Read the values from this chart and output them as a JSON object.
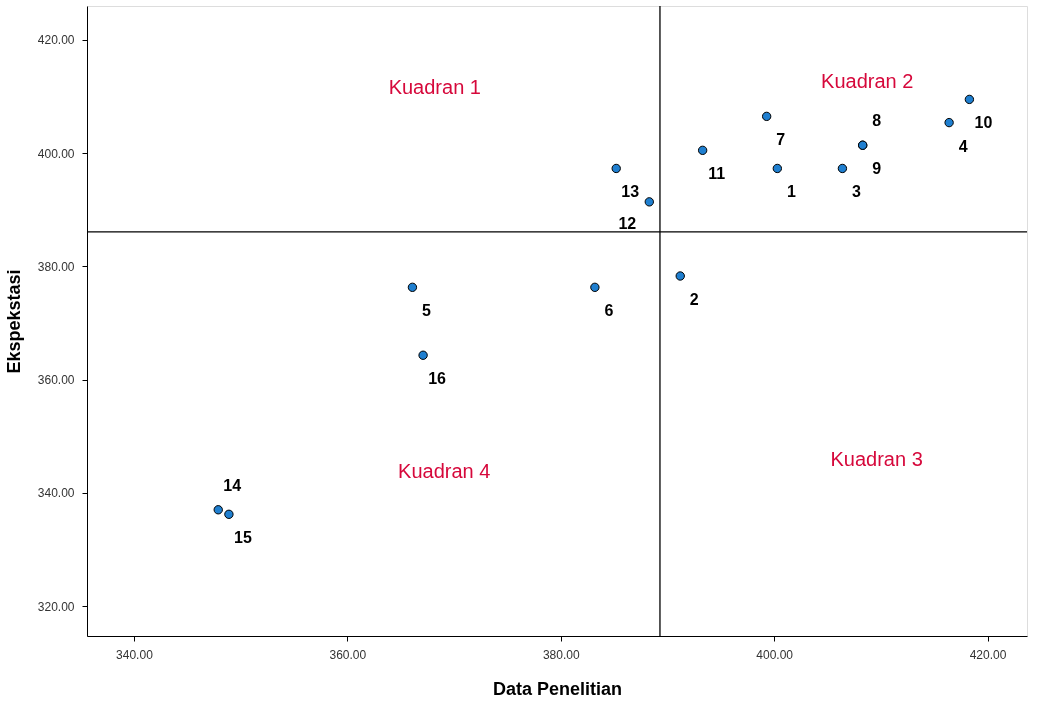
{
  "chart_data": {
    "type": "scatter",
    "xlabel": "Data Penelitian",
    "ylabel": "Ekspekstasi",
    "x": [
      400.3,
      391.2,
      406.4,
      416.4,
      366.1,
      383.2,
      399.3,
      408.3,
      408.3,
      418.3,
      393.3,
      388.3,
      385.2,
      347.9,
      348.9,
      367.1
    ],
    "series": [
      {
        "color": "#1f7fd0",
        "values": [
          397.3,
          378.3,
          397.3,
          405.4,
          376.3,
          376.3,
          406.5,
          401.4,
          401.4,
          409.5,
          400.5,
          391.4,
          397.3,
          337.0,
          336.2,
          364.3
        ]
      }
    ],
    "value_labels": [
      "1",
      "2",
      "3",
      "4",
      "5",
      "6",
      "7",
      "8",
      "9",
      "10",
      "11",
      "12",
      "13",
      "14",
      "15",
      "16"
    ],
    "xlim": [
      335.6,
      423.7
    ],
    "ylim": [
      314.7,
      426.0
    ],
    "xticks": [
      {
        "value": 340,
        "label": "340.00"
      },
      {
        "value": 360,
        "label": "360.00"
      },
      {
        "value": 380,
        "label": "380.00"
      },
      {
        "value": 400,
        "label": "400.00"
      },
      {
        "value": 420,
        "label": "420.00"
      }
    ],
    "yticks": [
      {
        "value": 320,
        "label": "320.00"
      },
      {
        "value": 340,
        "label": "340.00"
      },
      {
        "value": 360,
        "label": "360.00"
      },
      {
        "value": 380,
        "label": "380.00"
      },
      {
        "value": 400,
        "label": "400.00"
      },
      {
        "value": 420,
        "label": "420.00"
      }
    ],
    "ref_lines": [
      {
        "axis": "x",
        "value": 389.3,
        "color": "#000000"
      },
      {
        "axis": "y",
        "value": 386.1,
        "color": "#000000"
      }
    ],
    "annotations": [
      "Kuadran 1",
      "Kuadran 2",
      "Kuadran 3",
      "Kuadran 4"
    ],
    "marker": "circle",
    "grid": false,
    "legend": false
  }
}
